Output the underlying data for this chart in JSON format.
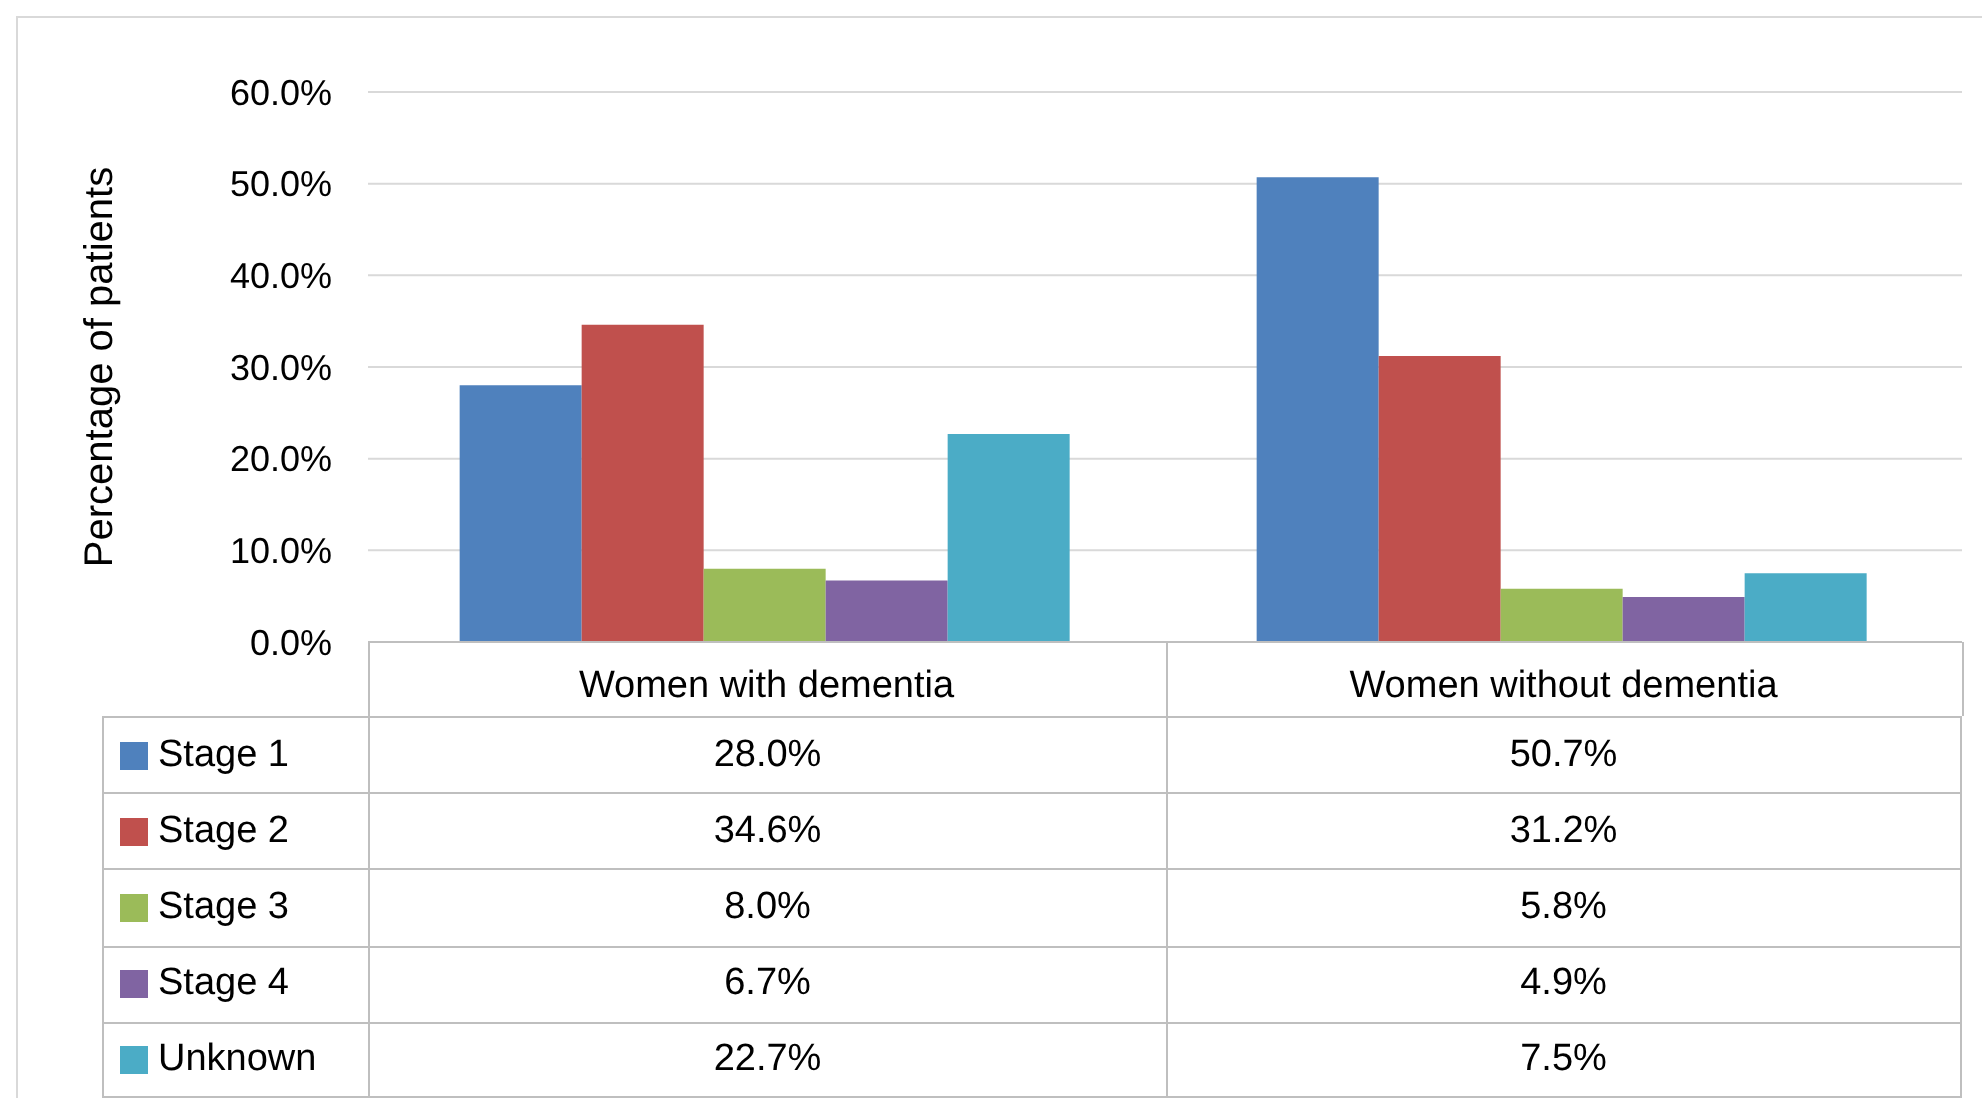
{
  "chart_data": {
    "type": "bar",
    "ylabel": "Percentage of patients",
    "categories": [
      "Women with dementia",
      "Women without dementia"
    ],
    "series": [
      {
        "name": "Stage 1",
        "color": "#4f81bd",
        "values": [
          28.0,
          50.7
        ],
        "value_labels": [
          "28.0%",
          "50.7%"
        ]
      },
      {
        "name": "Stage 2",
        "color": "#c0504d",
        "values": [
          34.6,
          31.2
        ],
        "value_labels": [
          "34.6%",
          "31.2%"
        ]
      },
      {
        "name": "Stage 3",
        "color": "#9bbb59",
        "values": [
          8.0,
          5.8
        ],
        "value_labels": [
          "8.0%",
          "5.8%"
        ]
      },
      {
        "name": "Stage 4",
        "color": "#8064a2",
        "values": [
          6.7,
          4.9
        ],
        "value_labels": [
          "6.7%",
          "4.9%"
        ]
      },
      {
        "name": "Unknown",
        "color": "#4bacc6",
        "values": [
          22.7,
          7.5
        ],
        "value_labels": [
          "22.7%",
          "7.5%"
        ]
      }
    ],
    "ylim": [
      0,
      60
    ],
    "yticks": [
      {
        "value": 0,
        "label": "0.0%"
      },
      {
        "value": 10,
        "label": "10.0%"
      },
      {
        "value": 20,
        "label": "20.0%"
      },
      {
        "value": 30,
        "label": "30.0%"
      },
      {
        "value": 40,
        "label": "40.0%"
      },
      {
        "value": 50,
        "label": "50.0%"
      },
      {
        "value": 60,
        "label": "60.0%"
      }
    ],
    "grid": "y",
    "legend": "bottom left"
  }
}
